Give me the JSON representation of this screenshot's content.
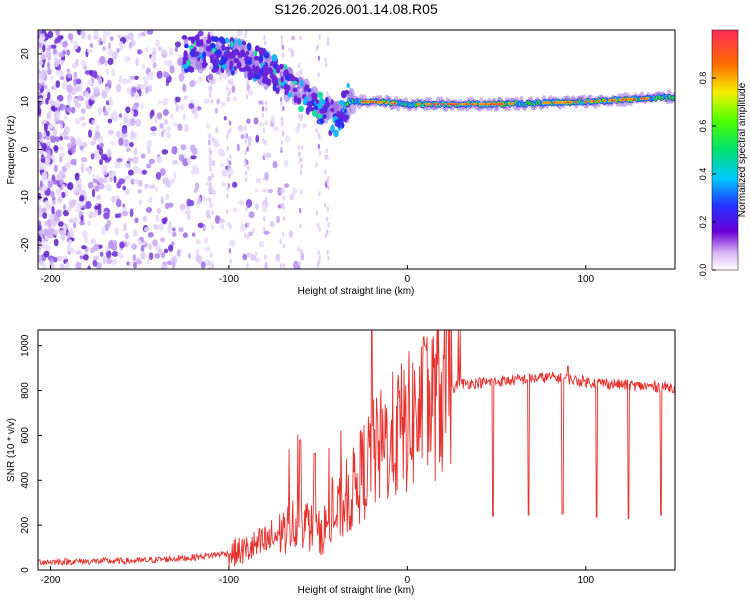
{
  "title": "S126.2026.001.14.08.R05",
  "chart_data": [
    {
      "type": "heatmap",
      "xlabel": "Height of straight line (km)",
      "ylabel": "Frequency (Hz)",
      "xlim": [
        -207,
        150
      ],
      "ylim": [
        -25,
        25
      ],
      "x_ticks": [
        -200,
        -100,
        0,
        100
      ],
      "y_ticks": [
        20,
        10,
        0,
        -10,
        -20
      ],
      "colorbar": {
        "label": "Normalized spectral amplitude",
        "range": [
          0.0,
          1.0
        ],
        "ticks": [
          "0.0",
          "0.2",
          "0.4",
          "0.6",
          "0.8"
        ]
      },
      "ridge": {
        "points": [
          {
            "x": -110,
            "y": 20
          },
          {
            "x": -90,
            "y": 19
          },
          {
            "x": -75,
            "y": 16
          },
          {
            "x": -60,
            "y": 12
          },
          {
            "x": -50,
            "y": 9
          },
          {
            "x": -40,
            "y": 6
          },
          {
            "x": -33,
            "y": 10
          },
          {
            "x": -20,
            "y": 10
          },
          {
            "x": 0,
            "y": 9.5
          },
          {
            "x": 50,
            "y": 9.5
          },
          {
            "x": 100,
            "y": 10
          },
          {
            "x": 150,
            "y": 11
          }
        ],
        "peak_amplitude": 0.85
      },
      "grid": false
    },
    {
      "type": "line",
      "xlabel": "Height of straight line (km)",
      "ylabel": "SNR (10 * v/v)",
      "xlim": [
        -207,
        150
      ],
      "ylim": [
        0,
        1070
      ],
      "x_ticks": [
        -200,
        -100,
        0,
        100
      ],
      "y_ticks": [
        0,
        200,
        400,
        600,
        800,
        1000
      ],
      "color": "#e8302c",
      "series": [
        {
          "points": [
            {
              "x": -207,
              "y": 30
            },
            {
              "x": -150,
              "y": 35
            },
            {
              "x": -120,
              "y": 50
            },
            {
              "x": -100,
              "y": 70
            },
            {
              "x": -90,
              "y": 90
            },
            {
              "x": -80,
              "y": 120
            },
            {
              "x": -70,
              "y": 170
            },
            {
              "x": -60,
              "y": 230
            },
            {
              "x": -50,
              "y": 160
            },
            {
              "x": -40,
              "y": 240
            },
            {
              "x": -30,
              "y": 360
            },
            {
              "x": -25,
              "y": 440
            },
            {
              "x": -20,
              "y": 500
            },
            {
              "x": -10,
              "y": 580
            },
            {
              "x": 0,
              "y": 650
            },
            {
              "x": 10,
              "y": 720
            },
            {
              "x": 20,
              "y": 790
            },
            {
              "x": 30,
              "y": 830
            },
            {
              "x": 50,
              "y": 840
            },
            {
              "x": 80,
              "y": 860
            },
            {
              "x": 100,
              "y": 840
            },
            {
              "x": 130,
              "y": 820
            },
            {
              "x": 150,
              "y": 815
            }
          ],
          "spikes": [
            {
              "x": -60,
              "y": 580
            },
            {
              "x": -52,
              "y": 520
            },
            {
              "x": -20,
              "y": 1070
            },
            {
              "x": 10,
              "y": 1000
            },
            {
              "x": 90,
              "y": 910
            }
          ],
          "dips": [
            {
              "x": 48,
              "y": 240
            },
            {
              "x": 68,
              "y": 245
            },
            {
              "x": 87,
              "y": 250
            },
            {
              "x": 106,
              "y": 235
            },
            {
              "x": 124,
              "y": 230
            },
            {
              "x": 142,
              "y": 245
            }
          ]
        }
      ],
      "grid": false
    }
  ]
}
